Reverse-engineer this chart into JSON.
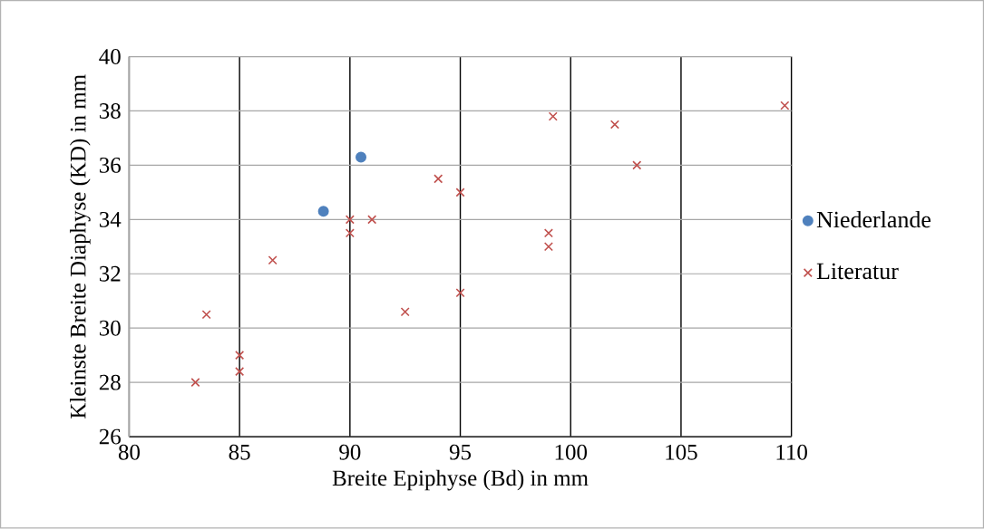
{
  "chart_data": {
    "type": "scatter",
    "xlabel": "Breite Epiphyse (Bd) in mm",
    "ylabel": "Kleinste Breite Diaphyse (KD) in mm",
    "xlim": [
      80,
      110
    ],
    "xticks": [
      80,
      85,
      90,
      95,
      100,
      105,
      110
    ],
    "ylim": [
      26,
      40
    ],
    "yticks": [
      26,
      28,
      30,
      32,
      34,
      36,
      38,
      40
    ],
    "grid": true,
    "legend": "right",
    "series": [
      {
        "name": "Niederlande",
        "color": "#4f81bd",
        "marker": "circle",
        "x": [
          88.8,
          90.5
        ],
        "values": [
          34.3,
          36.3
        ]
      },
      {
        "name": "Literatur",
        "color": "#c0504d",
        "marker": "cross",
        "x": [
          83.0,
          83.5,
          85.0,
          85.0,
          86.5,
          90.0,
          90.0,
          91.0,
          92.5,
          94.0,
          95.0,
          95.0,
          99.0,
          99.0,
          99.2,
          102.0,
          103.0,
          109.7
        ],
        "values": [
          28.0,
          30.5,
          29.0,
          28.4,
          32.5,
          34.0,
          33.5,
          34.0,
          30.6,
          35.5,
          35.0,
          31.3,
          33.5,
          33.0,
          37.8,
          37.5,
          36.0,
          38.2
        ]
      }
    ]
  }
}
